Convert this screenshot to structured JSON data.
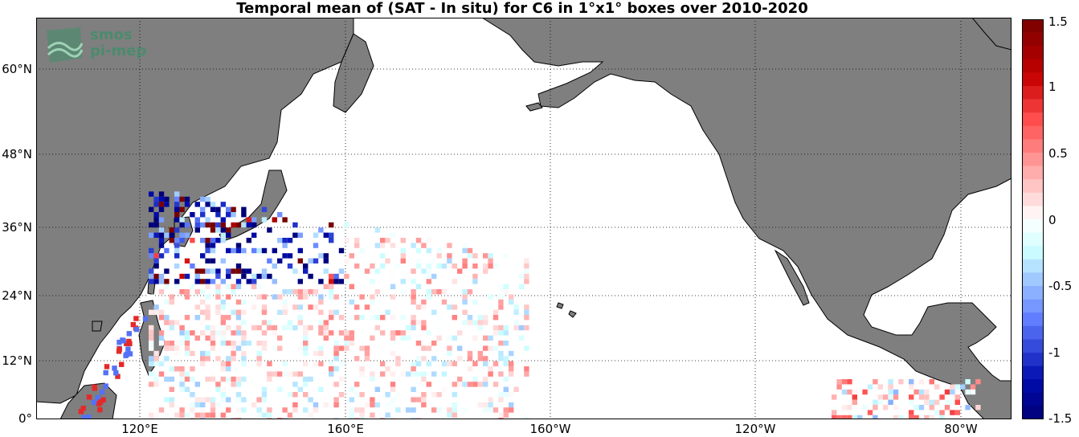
{
  "title": "Temporal mean of (SAT - In situ) for C6 in 1°x1° boxes over 2010-2020",
  "logo": {
    "line1": "smos",
    "line2": "pi-mep",
    "icon": "smos-wave-icon"
  },
  "colors": {
    "land": "#7f7f7f",
    "ocean": "#ffffff",
    "coast": "#000000"
  },
  "map": {
    "lon_range": [
      "100°E",
      "73°W"
    ],
    "lat_range": [
      "0°",
      "70°N"
    ],
    "lat_labels": [
      "60°N",
      "48°N",
      "36°N",
      "24°N",
      "12°N",
      "0°"
    ],
    "lon_labels": [
      "120°E",
      "160°E",
      "160°W",
      "120°W",
      "80°W"
    ],
    "grid": "dotted"
  },
  "colorbar": {
    "ticks": [
      "1.5",
      "1",
      "0.5",
      "0",
      "-0.5",
      "-1",
      "-1.5"
    ],
    "min": -1.5,
    "max": 1.5,
    "levels": 30,
    "colormap": "blue-white-red"
  }
}
